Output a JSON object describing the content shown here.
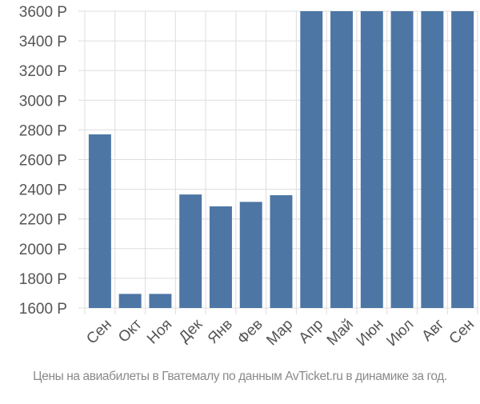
{
  "chart_data": {
    "type": "bar",
    "categories": [
      "Сен",
      "Окт",
      "Ноя",
      "Дек",
      "Янв",
      "Фев",
      "Мар",
      "Апр",
      "Май",
      "Июн",
      "Июл",
      "Авг",
      "Сен"
    ],
    "values": [
      2770,
      1695,
      1695,
      2365,
      2285,
      2315,
      2360,
      3600,
      3600,
      3600,
      3600,
      3600,
      3600
    ],
    "ylim": [
      1600,
      3600
    ],
    "yticks": [
      1600,
      1800,
      2000,
      2200,
      2400,
      2600,
      2800,
      3000,
      3200,
      3400,
      3600
    ],
    "ytick_labels": [
      "1600 Р",
      "1800 Р",
      "2000 Р",
      "2200 Р",
      "2400 Р",
      "2600 Р",
      "2800 Р",
      "3000 Р",
      "3200 Р",
      "3400 Р",
      "3600 Р"
    ],
    "grid": true,
    "bar_color": "#4d76a5",
    "grid_color": "#dddddd",
    "axis_text_color": "#555555"
  },
  "caption": "Цены на авиабилеты в Гватемалу по данным AvTicket.ru в динамике за год."
}
